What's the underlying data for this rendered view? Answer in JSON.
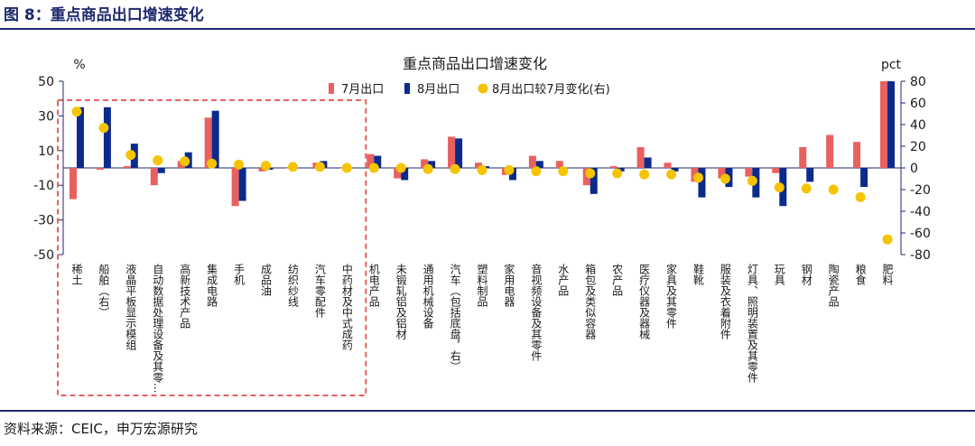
{
  "figure_title": "图 8：重点商品出口增速变化",
  "source": "资料来源：CEIC，申万宏源研究",
  "colors": {
    "jul": "#e8605f",
    "aug": "#0b2a8c",
    "change": "#f5c400",
    "rule": "#1e2a6e",
    "highlight_box": "#e8605f"
  },
  "chart_data": {
    "type": "bar",
    "title": "重点商品出口增速变化",
    "ylabel_left": "%",
    "ylabel_right": "pct",
    "ylim_left": [
      -50,
      50
    ],
    "yticks_left": [
      "50",
      "30",
      "10",
      "-10",
      "-30",
      "-50"
    ],
    "ylim_right": [
      -80,
      80
    ],
    "yticks_right": [
      "80",
      "60",
      "40",
      "20",
      "0",
      "-20",
      "-40",
      "-60",
      "-80"
    ],
    "legend_position": "top-center",
    "categories": [
      "稀土",
      "船舶（右）",
      "液晶平板显示模组",
      "自动数据处理设备及其零...",
      "高新技术产品",
      "集成电路",
      "手机",
      "成品油",
      "纺织纱线",
      "汽车零配件",
      "中药材及中式成药",
      "机电产品",
      "未锻轧铝及铝材",
      "通用机械设备",
      "汽车（包括底盘，右）",
      "塑料制品",
      "家用电器",
      "音视频设备及其零件",
      "水产品",
      "箱包及类似容器",
      "农产品",
      "医疗仪器及器械",
      "家具及其零件",
      "鞋靴",
      "服装及衣着附件",
      "灯具、照明装置及其零件",
      "玩具",
      "钢材",
      "陶瓷产品",
      "粮食",
      "肥料"
    ],
    "series": [
      {
        "name": "7月出口",
        "axis": "left",
        "values": [
          -18,
          -1,
          1,
          -10,
          4,
          29,
          -22,
          -2,
          0,
          3,
          0,
          8,
          -6,
          5,
          18,
          3,
          -4,
          7,
          4,
          -10,
          1,
          12,
          3,
          -8,
          -6,
          -5,
          -3,
          12,
          19,
          15,
          50
        ]
      },
      {
        "name": "8月出口",
        "axis": "left",
        "values": [
          35,
          35,
          14,
          -3,
          9,
          33,
          -19,
          -1,
          0,
          4,
          0,
          7,
          -7,
          4,
          17,
          1,
          -7,
          4,
          0,
          -15,
          -2,
          6,
          -2,
          -17,
          -11,
          -17,
          -22,
          -8,
          0,
          -11,
          50
        ]
      },
      {
        "name": "8月出口较7月变化(右)",
        "axis": "right",
        "values": [
          52,
          37,
          12,
          7,
          6,
          4,
          3,
          2,
          1,
          1,
          0,
          0,
          0,
          -1,
          -1,
          -2,
          -2,
          -3,
          -3,
          -5,
          -5,
          -6,
          -6,
          -9,
          -10,
          -12,
          -18,
          -19,
          -20,
          -27,
          -66
        ]
      }
    ],
    "highlight_group": {
      "from": "稀土",
      "to": "中药材及中式成药"
    }
  }
}
